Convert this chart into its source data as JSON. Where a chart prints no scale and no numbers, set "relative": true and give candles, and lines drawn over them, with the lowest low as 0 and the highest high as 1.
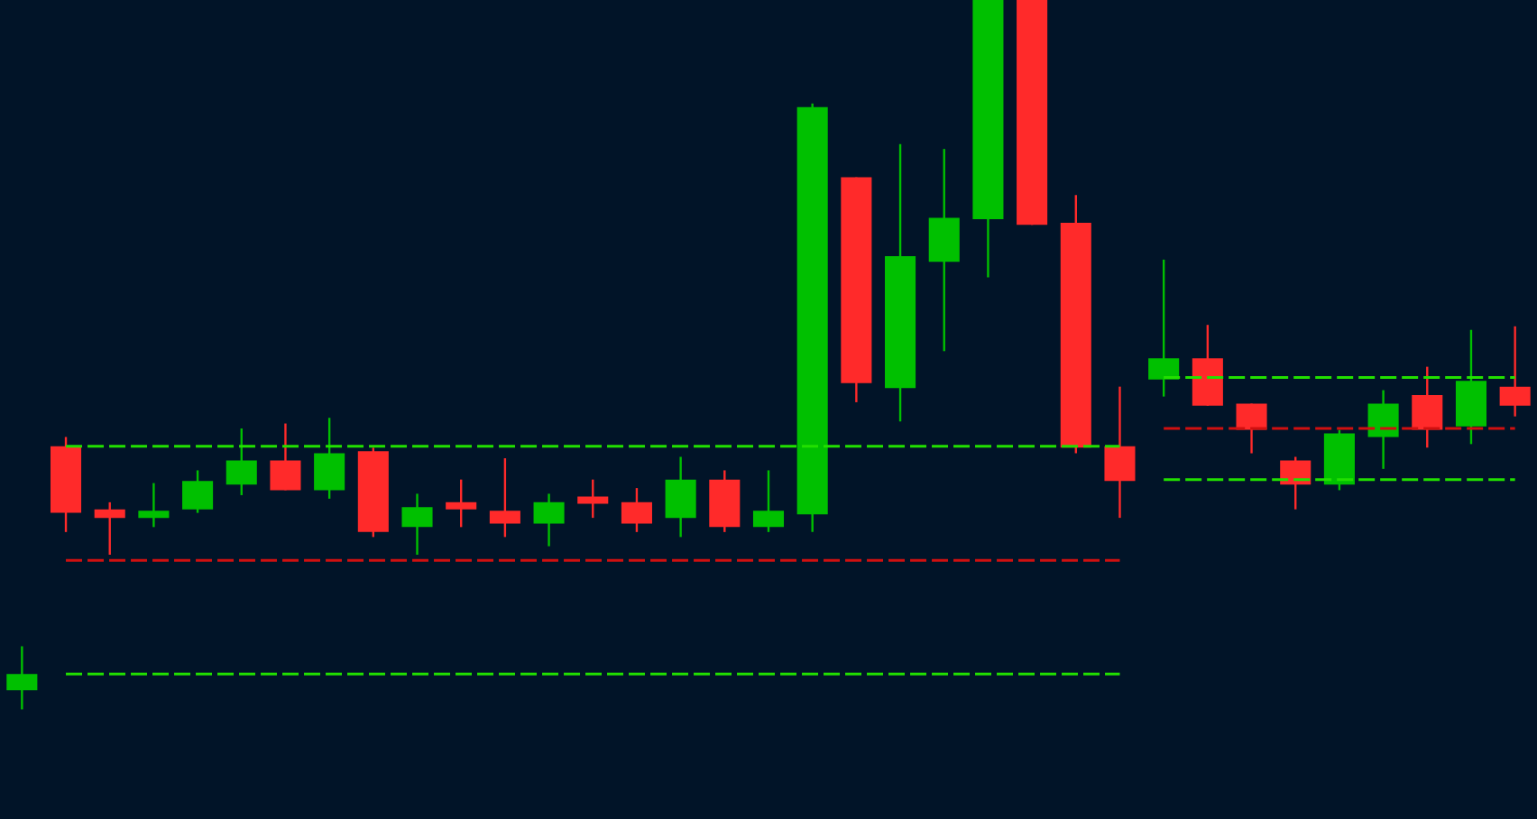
{
  "chart_data": {
    "type": "candlestick",
    "relative": true,
    "categories": [
      null,
      null,
      null,
      null,
      null,
      null,
      null,
      null,
      null,
      null,
      null,
      null,
      null,
      null,
      null,
      null,
      null,
      null,
      null,
      null,
      null,
      null,
      null,
      null,
      null,
      null,
      null,
      null,
      null,
      null,
      null,
      null,
      null,
      null,
      null
    ],
    "ohlc": [
      [
        0.027,
        0.089,
        0,
        0.05
      ],
      [
        0.371,
        0.384,
        0.25,
        0.277
      ],
      [
        0.282,
        0.292,
        0.218,
        0.27
      ],
      [
        0.27,
        0.319,
        0.257,
        0.28
      ],
      [
        0.282,
        0.337,
        0.277,
        0.322
      ],
      [
        0.317,
        0.396,
        0.302,
        0.351
      ],
      [
        0.351,
        0.403,
        0.309,
        0.309
      ],
      [
        0.309,
        0.411,
        0.297,
        0.361
      ],
      [
        0.364,
        0.369,
        0.243,
        0.25
      ],
      [
        0.257,
        0.304,
        0.218,
        0.285
      ],
      [
        0.292,
        0.324,
        0.257,
        0.282
      ],
      [
        0.28,
        0.354,
        0.243,
        0.262
      ],
      [
        0.262,
        0.304,
        0.23,
        0.292
      ],
      [
        0.3,
        0.324,
        0.27,
        0.29
      ],
      [
        0.292,
        0.312,
        0.25,
        0.262
      ],
      [
        0.27,
        0.356,
        0.243,
        0.324
      ],
      [
        0.324,
        0.337,
        0.25,
        0.257
      ],
      [
        0.257,
        0.337,
        0.25,
        0.28
      ],
      [
        0.275,
        0.854,
        0.25,
        0.849
      ],
      [
        0.75,
        0.75,
        0.433,
        0.46
      ],
      [
        0.453,
        0.797,
        0.406,
        0.639
      ],
      [
        0.631,
        0.79,
        0.505,
        0.693
      ],
      [
        0.691,
        1.0,
        0.609,
        1.0
      ],
      [
        1.0,
        1.0,
        0.683,
        0.683
      ],
      [
        0.686,
        0.725,
        0.361,
        0.369
      ],
      [
        0.371,
        0.455,
        0.27,
        0.322
      ],
      [
        0.465,
        0.634,
        0.441,
        0.495
      ],
      [
        0.495,
        0.542,
        0.428,
        0.428
      ],
      [
        0.431,
        0.431,
        0.361,
        0.394
      ],
      [
        0.351,
        0.356,
        0.282,
        0.317
      ],
      [
        0.317,
        0.394,
        0.309,
        0.389
      ],
      [
        0.384,
        0.45,
        0.339,
        0.431
      ],
      [
        0.443,
        0.483,
        0.369,
        0.394
      ],
      [
        0.399,
        0.535,
        0.374,
        0.463
      ],
      [
        0.455,
        0.54,
        0.413,
        0.428
      ]
    ],
    "colors": [
      "#00c000",
      "#ff2a2a",
      "#ff2a2a",
      "#00c000",
      "#00c000",
      "#00c000",
      "#ff2a2a",
      "#00c000",
      "#ff2a2a",
      "#00c000",
      "#ff2a2a",
      "#ff2a2a",
      "#00c000",
      "#ff2a2a",
      "#ff2a2a",
      "#00c000",
      "#ff2a2a",
      "#00c000",
      "#00c000",
      "#ff2a2a",
      "#00c000",
      "#00c000",
      "#00c000",
      "#ff2a2a",
      "#ff2a2a",
      "#ff2a2a",
      "#00c000",
      "#ff2a2a",
      "#ff2a2a",
      "#ff2a2a",
      "#00c000",
      "#00c000",
      "#ff2a2a",
      "#00c000",
      "#ff2a2a"
    ],
    "series": [
      {
        "type": "line",
        "color": "#22e000",
        "line_style": "dashed",
        "values": [
          null,
          0.371,
          0.371,
          0.371,
          0.371,
          0.371,
          0.371,
          0.371,
          0.371,
          0.371,
          0.371,
          0.371,
          0.371,
          0.371,
          0.371,
          0.371,
          0.371,
          0.371,
          0.371,
          0.371,
          0.371,
          0.371,
          0.371,
          0.371,
          0.371,
          0.371,
          null,
          null,
          null,
          null,
          null,
          null,
          null,
          null,
          null
        ]
      },
      {
        "type": "line",
        "color": "#d01010",
        "line_style": "dashed",
        "values": [
          null,
          0.21,
          0.21,
          0.21,
          0.21,
          0.21,
          0.21,
          0.21,
          0.21,
          0.21,
          0.21,
          0.21,
          0.21,
          0.21,
          0.21,
          0.21,
          0.21,
          0.21,
          0.21,
          0.21,
          0.21,
          0.21,
          0.21,
          0.21,
          0.21,
          0.21,
          null,
          null,
          null,
          null,
          null,
          null,
          null,
          null,
          null
        ]
      },
      {
        "type": "line",
        "color": "#22e000",
        "line_style": "dashed",
        "values": [
          null,
          0.05,
          0.05,
          0.05,
          0.05,
          0.05,
          0.05,
          0.05,
          0.05,
          0.05,
          0.05,
          0.05,
          0.05,
          0.05,
          0.05,
          0.05,
          0.05,
          0.05,
          0.05,
          0.05,
          0.05,
          0.05,
          0.05,
          0.05,
          0.05,
          0.05,
          null,
          null,
          null,
          null,
          null,
          null,
          null,
          null,
          null
        ]
      },
      {
        "type": "line",
        "color": "#22e000",
        "line_style": "dashed",
        "values": [
          null,
          null,
          null,
          null,
          null,
          null,
          null,
          null,
          null,
          null,
          null,
          null,
          null,
          null,
          null,
          null,
          null,
          null,
          null,
          null,
          null,
          null,
          null,
          null,
          null,
          null,
          0.468,
          0.468,
          0.468,
          0.468,
          0.468,
          0.468,
          0.468,
          0.468,
          0.468
        ]
      },
      {
        "type": "line",
        "color": "#d01010",
        "line_style": "dashed",
        "values": [
          null,
          null,
          null,
          null,
          null,
          null,
          null,
          null,
          null,
          null,
          null,
          null,
          null,
          null,
          null,
          null,
          null,
          null,
          null,
          null,
          null,
          null,
          null,
          null,
          null,
          null,
          0.396,
          0.396,
          0.396,
          0.396,
          0.396,
          0.396,
          0.396,
          0.396,
          0.396
        ]
      },
      {
        "type": "line",
        "color": "#22e000",
        "line_style": "dashed",
        "values": [
          null,
          null,
          null,
          null,
          null,
          null,
          null,
          null,
          null,
          null,
          null,
          null,
          null,
          null,
          null,
          null,
          null,
          null,
          null,
          null,
          null,
          null,
          null,
          null,
          null,
          null,
          0.324,
          0.324,
          0.324,
          0.324,
          0.324,
          0.324,
          0.324,
          0.324,
          0.324
        ]
      }
    ]
  }
}
